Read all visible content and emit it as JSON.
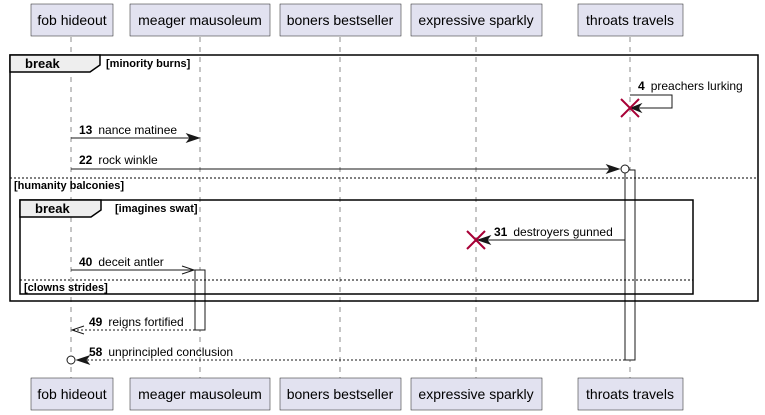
{
  "participants": [
    {
      "id": "fob",
      "label": "fob hideout"
    },
    {
      "id": "meager",
      "label": "meager mausoleum"
    },
    {
      "id": "boners",
      "label": "boners bestseller"
    },
    {
      "id": "expressive",
      "label": "expressive sparkly"
    },
    {
      "id": "throats",
      "label": "throats travels"
    }
  ],
  "fragments": {
    "outer": {
      "keyword": "break",
      "guard": "[minority burns]",
      "else_guard": "[humanity balconies]"
    },
    "inner": {
      "keyword": "break",
      "guard": "[imagines swat]",
      "else_guard": "[clowns strides]"
    }
  },
  "messages": [
    {
      "num": "4",
      "text": "preachers lurking",
      "from": "throats",
      "to": "throats",
      "style": "self-destroy"
    },
    {
      "num": "13",
      "text": "nance matinee",
      "from": "fob",
      "to": "meager",
      "style": "solid"
    },
    {
      "num": "22",
      "text": "rock winkle",
      "from": "fob",
      "to": "throats",
      "style": "solid-circle"
    },
    {
      "num": "31",
      "text": "destroyers gunned",
      "from": "throats",
      "to": "expressive",
      "style": "solid-destroy"
    },
    {
      "num": "40",
      "text": "deceit antler",
      "from": "fob",
      "to": "meager",
      "style": "open-arrow"
    },
    {
      "num": "49",
      "text": "reigns fortified",
      "from": "meager",
      "to": "fob",
      "style": "dashed-open"
    },
    {
      "num": "58",
      "text": "unprincipled conclusion",
      "from": "throats",
      "to": "fob",
      "style": "dashed-circle"
    }
  ]
}
